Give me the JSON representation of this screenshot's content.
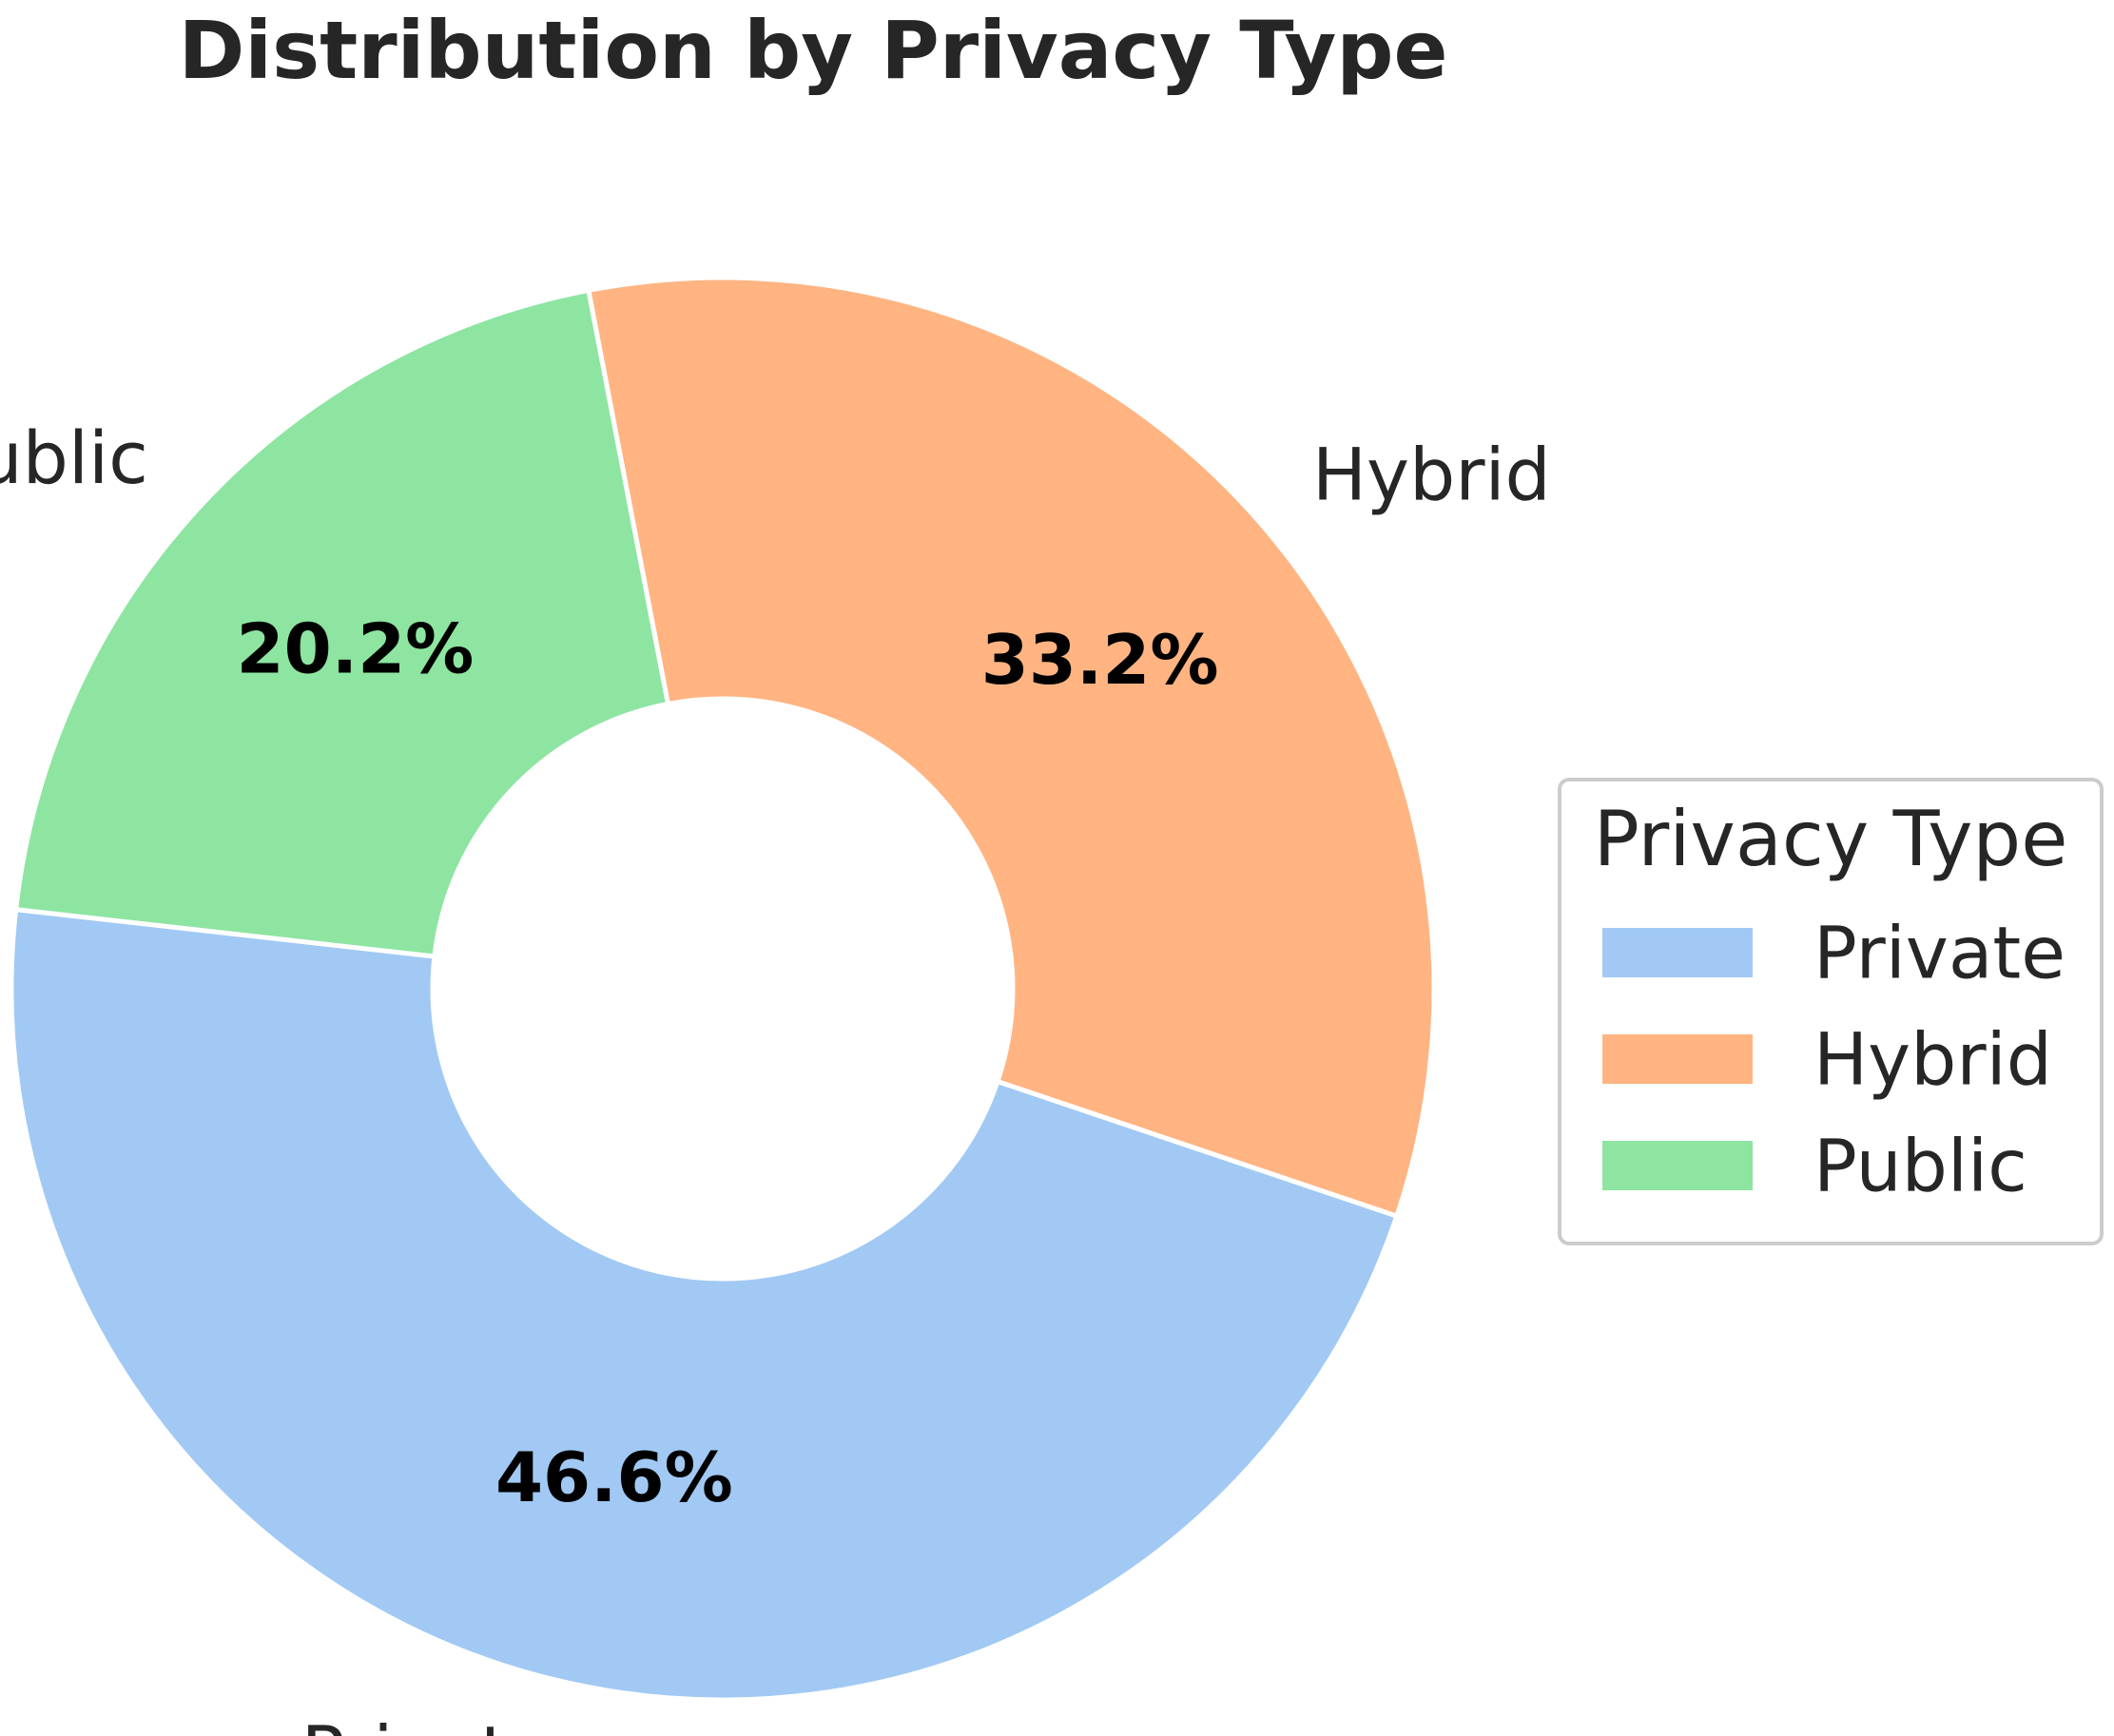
{
  "chart_data": {
    "type": "pie",
    "variant": "donut",
    "title": "Distribution by Privacy Type",
    "categories": [
      "Private",
      "Hybrid",
      "Public"
    ],
    "values": [
      46.6,
      33.2,
      20.2
    ],
    "percent_labels": [
      "46.6%",
      "33.2%",
      "20.2%"
    ],
    "colors": [
      "#a1c9f4",
      "#ffb482",
      "#8de5a1"
    ],
    "legend": {
      "title": "Privacy Type",
      "placement": "right",
      "entries": [
        "Private",
        "Hybrid",
        "Public"
      ]
    },
    "grid": false
  }
}
